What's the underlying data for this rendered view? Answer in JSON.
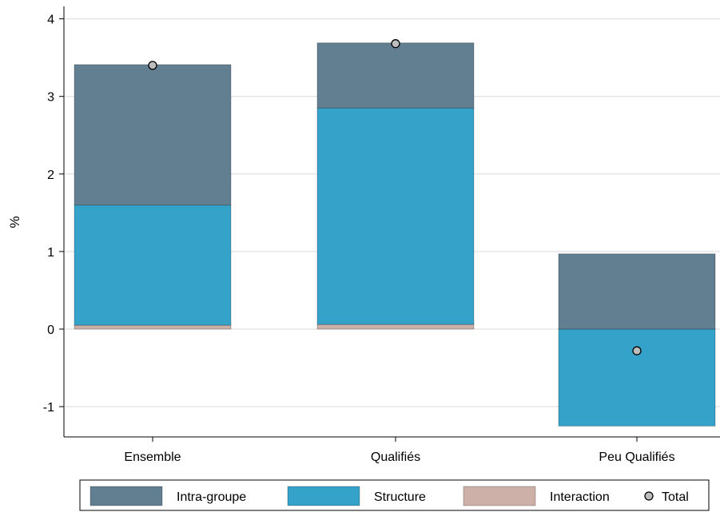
{
  "chart_data": {
    "type": "bar",
    "stacked": true,
    "title": "",
    "xlabel": "",
    "ylabel": "%",
    "ylim": [
      -1.3,
      4.15
    ],
    "yticks": [
      -1,
      0,
      1,
      2,
      3,
      4
    ],
    "ytick_labels": [
      "-1",
      "0",
      "1",
      "2",
      "3",
      "4"
    ],
    "grid": true,
    "legend_position": "bottom",
    "categories": [
      "Ensemble",
      "Qualifiés",
      "Peu Qualifiés"
    ],
    "series": [
      {
        "name": "Interaction",
        "values": [
          0.05,
          0.06,
          0.0
        ],
        "color": "#cdb0a8"
      },
      {
        "name": "Structure",
        "values": [
          1.55,
          2.79,
          -1.25
        ],
        "color": "#35a2c9"
      },
      {
        "name": "Intra-groupe",
        "values": [
          1.81,
          0.84,
          0.97
        ],
        "color": "#627f92"
      }
    ],
    "total": {
      "name": "Total",
      "values": [
        3.4,
        3.68,
        -0.28
      ],
      "color": "#bdbdbd"
    },
    "legend_entries": [
      {
        "label": "Intra-groupe",
        "kind": "bar",
        "color": "#627f92"
      },
      {
        "label": "Structure",
        "kind": "bar",
        "color": "#35a2c9"
      },
      {
        "label": "Interaction",
        "kind": "bar",
        "color": "#cdb0a8"
      },
      {
        "label": "Total",
        "kind": "marker",
        "color": "#bdbdbd"
      }
    ]
  }
}
